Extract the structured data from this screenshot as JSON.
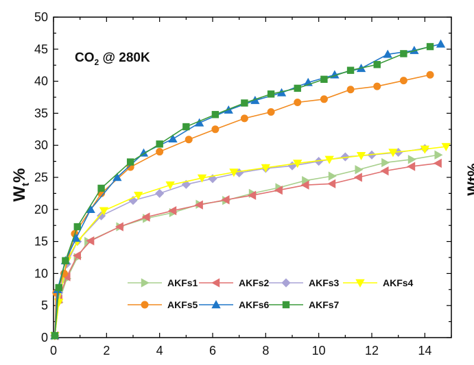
{
  "chart_data": {
    "type": "line",
    "title": "",
    "annotation": {
      "main": "CO",
      "sub": "2",
      "rest": " @ 280K"
    },
    "ylabel": {
      "main": "W",
      "sub": "t",
      "rest": "%"
    },
    "xlabel": "",
    "xlim": [
      0,
      15
    ],
    "ylim": [
      0,
      50
    ],
    "x_ticks": [
      0,
      2,
      4,
      6,
      8,
      10,
      12,
      14
    ],
    "y_ticks": [
      0,
      5,
      10,
      15,
      20,
      25,
      30,
      35,
      40,
      45,
      50
    ],
    "grid": false,
    "legend_position": "bottom-right",
    "cropped_label_fragment": "Wt%",
    "series": [
      {
        "name": "AKFs1",
        "color": "#a8d08d",
        "marker": "triangle-right",
        "x": [
          0.05,
          0.2,
          0.5,
          0.9,
          1.3,
          2.5,
          3.5,
          4.5,
          5.5,
          6.5,
          7.5,
          8.5,
          9.5,
          10.5,
          11.5,
          12.5,
          13.5,
          14.5
        ],
        "y": [
          0.3,
          5.5,
          9.2,
          12.5,
          15.0,
          17.3,
          18.6,
          19.5,
          20.8,
          21.4,
          22.5,
          23.4,
          24.5,
          25.2,
          26.2,
          27.3,
          27.8,
          28.5
        ]
      },
      {
        "name": "AKFs2",
        "color": "#e07070",
        "marker": "triangle-left",
        "x": [
          0.05,
          0.2,
          0.5,
          0.9,
          1.4,
          2.5,
          3.5,
          4.5,
          5.5,
          6.5,
          7.5,
          8.5,
          9.5,
          10.5,
          11.5,
          12.5,
          13.5,
          14.5
        ],
        "y": [
          0.3,
          6.0,
          9.5,
          12.8,
          15.1,
          17.3,
          18.8,
          19.8,
          20.7,
          21.5,
          22.2,
          23.0,
          23.8,
          24.0,
          25.0,
          26.0,
          26.7,
          27.2
        ]
      },
      {
        "name": "AKFs3",
        "color": "#a9a3d6",
        "marker": "diamond",
        "x": [
          0.05,
          0.2,
          0.5,
          0.9,
          1.8,
          3.0,
          4.0,
          5.0,
          6.0,
          7.0,
          8.0,
          9.0,
          10.0,
          11.0,
          12.0,
          13.0,
          14.0
        ],
        "y": [
          0.3,
          7.0,
          11.5,
          15.0,
          19.0,
          21.4,
          22.5,
          23.9,
          24.8,
          25.7,
          26.4,
          26.8,
          27.5,
          28.2,
          28.5,
          28.9,
          29.5
        ]
      },
      {
        "name": "AKFs4",
        "color": "#ffff00",
        "marker": "triangle-down",
        "x": [
          0.05,
          0.2,
          0.5,
          0.9,
          1.9,
          3.2,
          4.4,
          5.6,
          6.8,
          8.0,
          9.2,
          10.4,
          11.6,
          12.8,
          14.0,
          14.8
        ],
        "y": [
          0.3,
          5.5,
          12.0,
          15.0,
          19.8,
          22.2,
          23.8,
          24.9,
          25.8,
          26.5,
          27.2,
          27.8,
          28.4,
          28.9,
          29.4,
          29.8
        ]
      },
      {
        "name": "AKFs5",
        "color": "#f28a1e",
        "marker": "circle",
        "x": [
          0.05,
          0.1,
          0.4,
          0.8,
          1.8,
          2.9,
          4.0,
          5.1,
          6.1,
          7.2,
          8.2,
          9.2,
          10.2,
          11.2,
          12.2,
          13.2,
          14.2
        ],
        "y": [
          0.3,
          7.0,
          10.0,
          16.2,
          22.5,
          26.6,
          29.0,
          30.9,
          32.5,
          34.2,
          35.2,
          36.7,
          37.2,
          38.7,
          39.2,
          40.1,
          41.0
        ]
      },
      {
        "name": "AKFs6",
        "color": "#1f77c8",
        "marker": "triangle-up",
        "x": [
          0.05,
          0.15,
          0.45,
          0.85,
          1.4,
          2.4,
          3.4,
          4.5,
          5.5,
          6.6,
          7.6,
          8.6,
          9.6,
          10.6,
          11.6,
          12.6,
          13.6,
          14.6
        ],
        "y": [
          0.3,
          7.5,
          12.0,
          15.5,
          20.0,
          25.0,
          28.8,
          31.0,
          33.5,
          35.5,
          37.0,
          38.2,
          39.8,
          41.0,
          42.0,
          44.2,
          44.8,
          45.8
        ]
      },
      {
        "name": "AKFs7",
        "color": "#3a9a3a",
        "marker": "square",
        "x": [
          0.05,
          0.2,
          0.45,
          0.9,
          1.8,
          2.9,
          4.0,
          5.0,
          6.1,
          7.2,
          8.2,
          9.2,
          10.2,
          11.2,
          12.2,
          13.2,
          14.2
        ],
        "y": [
          0.3,
          7.8,
          12.0,
          17.3,
          23.3,
          27.4,
          30.2,
          32.9,
          34.8,
          36.6,
          38.0,
          38.9,
          40.3,
          41.7,
          42.6,
          44.3,
          45.4
        ]
      }
    ]
  }
}
